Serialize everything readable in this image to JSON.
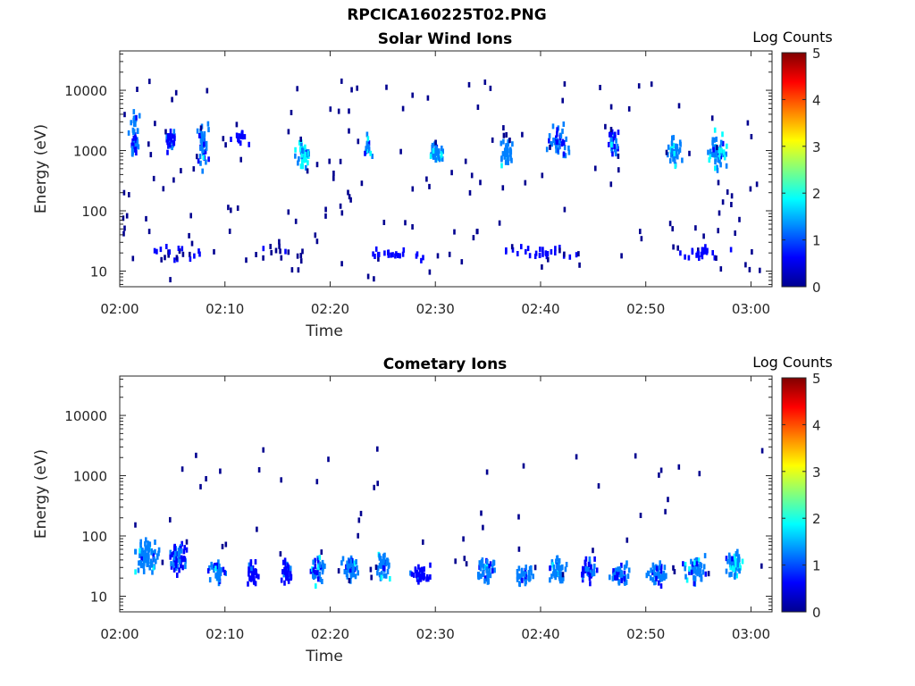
{
  "figure_title": "RPCICA160225T02.PNG",
  "colormap": [
    "#00008f",
    "#0000ff",
    "#0080ff",
    "#00ffff",
    "#80ff80",
    "#ffff00",
    "#ff8000",
    "#ff0000",
    "#800000"
  ],
  "chart_data": [
    {
      "type": "heatmap",
      "title": "Solar Wind Ions",
      "xlabel": "Time",
      "ylabel": "Energy (eV)",
      "x_ticks": [
        "02:00",
        "02:10",
        "02:20",
        "02:30",
        "02:40",
        "02:50",
        "03:00"
      ],
      "y_ticks": [
        "10",
        "100",
        "1000",
        "10000"
      ],
      "y_scale": "log",
      "ylim": [
        5.5,
        45000
      ],
      "xlim_minutes": [
        0,
        62
      ],
      "colorbar": {
        "label": "Log Counts",
        "ticks": [
          "0",
          "1",
          "2",
          "3",
          "4",
          "5"
        ],
        "range": [
          0,
          5
        ]
      },
      "clusters": [
        {
          "t": 1.3,
          "e": 2000,
          "w": 1.2,
          "h": 0.5,
          "v": 1.2,
          "n": 40
        },
        {
          "t": 4.7,
          "e": 1600,
          "w": 1.3,
          "h": 0.3,
          "v": 1.0,
          "n": 28
        },
        {
          "t": 7.8,
          "e": 1500,
          "w": 1.2,
          "h": 0.5,
          "v": 1.3,
          "n": 40
        },
        {
          "t": 11.5,
          "e": 1800,
          "w": 2.0,
          "h": 0.2,
          "v": 0.6,
          "n": 14
        },
        {
          "t": 17.3,
          "e": 1000,
          "w": 1.4,
          "h": 0.3,
          "v": 1.8,
          "n": 38
        },
        {
          "t": 23.5,
          "e": 1200,
          "w": 0.8,
          "h": 0.3,
          "v": 1.4,
          "n": 18
        },
        {
          "t": 30.0,
          "e": 1000,
          "w": 1.5,
          "h": 0.22,
          "v": 1.7,
          "n": 42
        },
        {
          "t": 36.6,
          "e": 1000,
          "w": 1.4,
          "h": 0.3,
          "v": 1.6,
          "n": 38
        },
        {
          "t": 41.5,
          "e": 1500,
          "w": 2.2,
          "h": 0.4,
          "v": 1.2,
          "n": 48
        },
        {
          "t": 46.8,
          "e": 1500,
          "w": 1.4,
          "h": 0.4,
          "v": 1.2,
          "n": 32
        },
        {
          "t": 52.6,
          "e": 1000,
          "w": 1.5,
          "h": 0.35,
          "v": 1.6,
          "n": 38
        },
        {
          "t": 56.8,
          "e": 1100,
          "w": 2.0,
          "h": 0.45,
          "v": 1.8,
          "n": 52
        },
        {
          "t": 26.0,
          "e": 22,
          "w": 7.0,
          "h": 0.15,
          "v": 0.5,
          "n": 22
        },
        {
          "t": 40.0,
          "e": 22,
          "w": 8.0,
          "h": 0.15,
          "v": 0.5,
          "n": 26
        },
        {
          "t": 55.0,
          "e": 22,
          "w": 6.0,
          "h": 0.15,
          "v": 0.5,
          "n": 24
        },
        {
          "t": 6.0,
          "e": 22,
          "w": 6.0,
          "h": 0.15,
          "v": 0.4,
          "n": 20
        },
        {
          "t": 15.0,
          "e": 22,
          "w": 6.0,
          "h": 0.15,
          "v": 0.3,
          "n": 14
        }
      ],
      "scatter_count": 170
    },
    {
      "type": "heatmap",
      "title": "Cometary Ions",
      "xlabel": "Time",
      "ylabel": "Energy (eV)",
      "x_ticks": [
        "02:00",
        "02:10",
        "02:20",
        "02:30",
        "02:40",
        "02:50",
        "03:00"
      ],
      "y_ticks": [
        "10",
        "100",
        "1000",
        "10000"
      ],
      "y_scale": "log",
      "ylim": [
        5.5,
        45000
      ],
      "xlim_minutes": [
        0,
        62
      ],
      "colorbar": {
        "label": "Log Counts",
        "ticks": [
          "0",
          "1",
          "2",
          "3",
          "4",
          "5"
        ],
        "range": [
          0,
          5
        ]
      },
      "clusters": [
        {
          "t": 2.5,
          "e": 50,
          "w": 2.4,
          "h": 0.35,
          "v": 1.5,
          "n": 80
        },
        {
          "t": 5.5,
          "e": 50,
          "w": 2.0,
          "h": 0.35,
          "v": 1.1,
          "n": 60
        },
        {
          "t": 9.2,
          "e": 28,
          "w": 1.6,
          "h": 0.25,
          "v": 1.3,
          "n": 42
        },
        {
          "t": 12.5,
          "e": 25,
          "w": 1.3,
          "h": 0.25,
          "v": 0.8,
          "n": 30
        },
        {
          "t": 15.8,
          "e": 28,
          "w": 1.2,
          "h": 0.25,
          "v": 1.0,
          "n": 34
        },
        {
          "t": 18.8,
          "e": 30,
          "w": 1.5,
          "h": 0.35,
          "v": 1.3,
          "n": 46
        },
        {
          "t": 21.8,
          "e": 32,
          "w": 1.8,
          "h": 0.3,
          "v": 1.2,
          "n": 44
        },
        {
          "t": 25.0,
          "e": 35,
          "w": 1.5,
          "h": 0.3,
          "v": 1.5,
          "n": 44
        },
        {
          "t": 28.5,
          "e": 25,
          "w": 2.4,
          "h": 0.2,
          "v": 0.9,
          "n": 36
        },
        {
          "t": 34.8,
          "e": 30,
          "w": 2.2,
          "h": 0.3,
          "v": 1.4,
          "n": 52
        },
        {
          "t": 38.3,
          "e": 25,
          "w": 1.8,
          "h": 0.2,
          "v": 1.3,
          "n": 40
        },
        {
          "t": 41.5,
          "e": 30,
          "w": 2.0,
          "h": 0.3,
          "v": 1.5,
          "n": 50
        },
        {
          "t": 44.5,
          "e": 30,
          "w": 2.0,
          "h": 0.3,
          "v": 1.0,
          "n": 46
        },
        {
          "t": 47.5,
          "e": 25,
          "w": 2.0,
          "h": 0.25,
          "v": 1.2,
          "n": 46
        },
        {
          "t": 51.0,
          "e": 25,
          "w": 2.2,
          "h": 0.22,
          "v": 1.3,
          "n": 46
        },
        {
          "t": 54.5,
          "e": 30,
          "w": 2.4,
          "h": 0.3,
          "v": 1.3,
          "n": 58
        },
        {
          "t": 58.3,
          "e": 40,
          "w": 1.8,
          "h": 0.35,
          "v": 1.6,
          "n": 56
        }
      ],
      "scatter_count": 60
    }
  ]
}
